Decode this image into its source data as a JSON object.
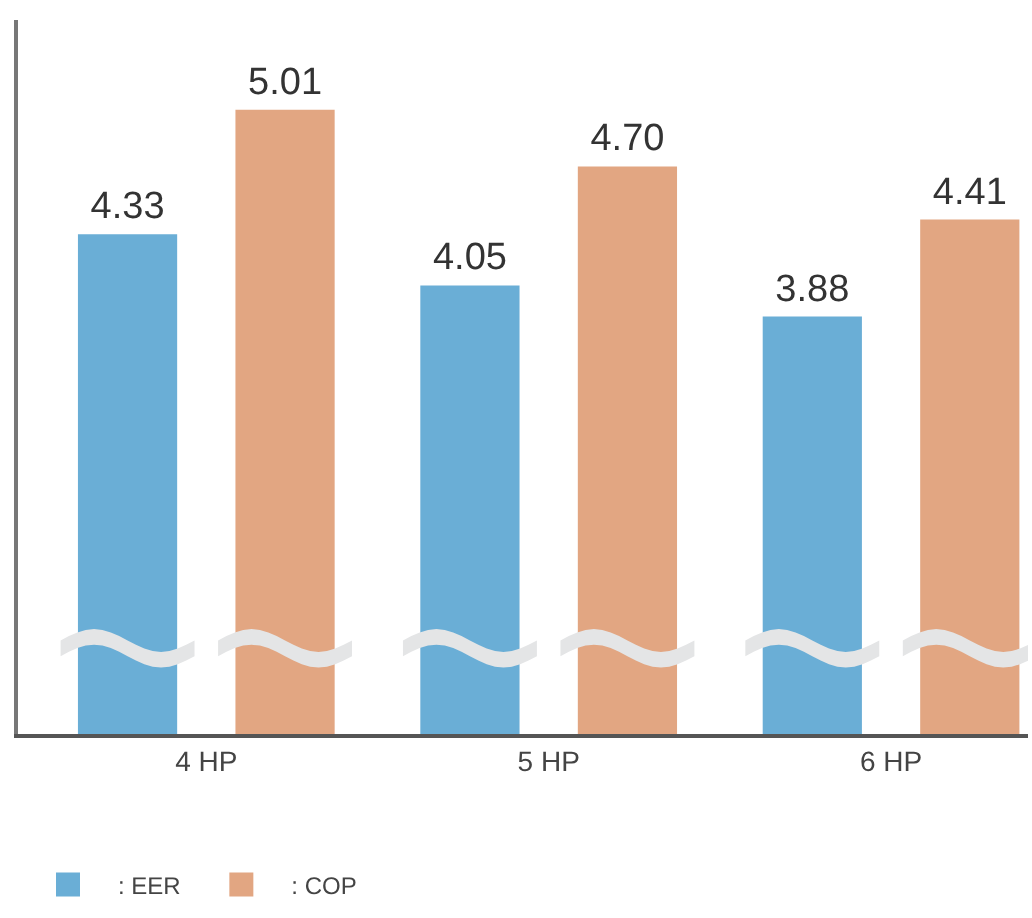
{
  "chart_data": {
    "type": "bar",
    "categories": [
      "4 HP",
      "5 HP",
      "6 HP"
    ],
    "series": [
      {
        "name": ": EER",
        "color": "#6aaed6",
        "values": [
          4.33,
          4.05,
          3.88
        ],
        "value_labels": [
          "4.33",
          "4.05",
          "3.88"
        ]
      },
      {
        "name": ": COP",
        "color": "#e2a682",
        "values": [
          5.01,
          4.7,
          4.41
        ],
        "value_labels": [
          "5.01",
          "4.70",
          "4.41"
        ]
      }
    ],
    "ylim": [
      1.6,
      5.5
    ],
    "tick_labels": "x",
    "legend": "bottom left"
  }
}
